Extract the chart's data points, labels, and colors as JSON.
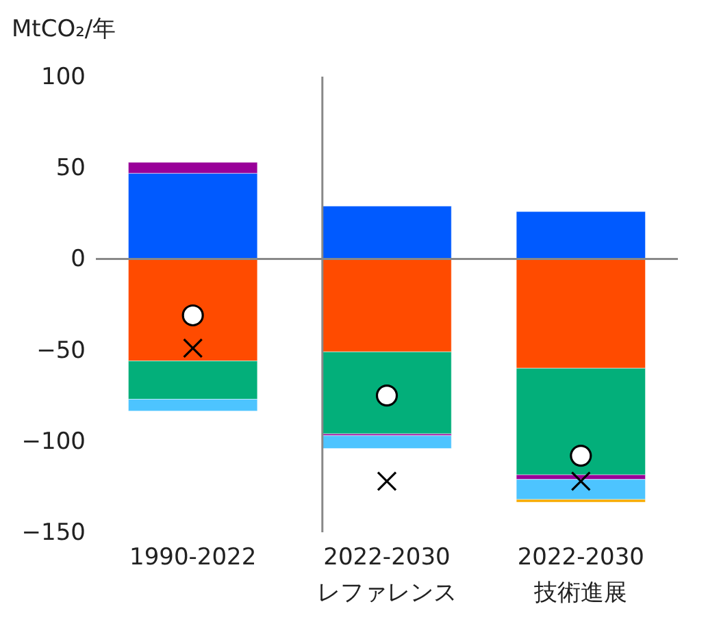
{
  "chart_data": {
    "type": "bar",
    "stacked": true,
    "ylabel": "MtCO₂/年",
    "categories": [
      "1990-2022",
      "2022-2030\nレファレンス",
      "2022-2030\n技術進展"
    ],
    "ylim": [
      -150,
      100
    ],
    "yticks": [
      100,
      50,
      0,
      -50,
      -100,
      -150
    ],
    "grid": false,
    "legend": false,
    "ref_lines": [
      {
        "axis": "y",
        "value": 0,
        "color": "#888888"
      }
    ],
    "series": [
      {
        "color": "#005aff",
        "values": [
          47,
          29,
          26
        ]
      },
      {
        "color": "#ff4b00",
        "values": [
          -56,
          -51,
          -60
        ]
      },
      {
        "color": "#03af7a",
        "values": [
          -21,
          -45,
          -58.5
        ]
      },
      {
        "color": "#990099",
        "values": [
          6,
          -1,
          -2.5
        ]
      },
      {
        "color": "#4dc4ff",
        "values": [
          -6.5,
          -7,
          -11
        ]
      },
      {
        "color": "#f6aa00",
        "values": [
          null,
          null,
          -1.5
        ]
      },
      {
        "type": "scatter",
        "marker": "circle",
        "color": "#ffffff",
        "x": [
          "1990-2022",
          "2022-2030\nレファレンス",
          "2022-2030\n技術進展"
        ],
        "values": [
          -31,
          -75,
          -108
        ]
      },
      {
        "type": "scatter",
        "marker": "cross",
        "color": "#000000",
        "x": [
          "1990-2022",
          "2022-2030\nレファレンス",
          "2022-2030\n技術進展"
        ],
        "values": [
          -49,
          -122,
          -122
        ]
      }
    ]
  }
}
